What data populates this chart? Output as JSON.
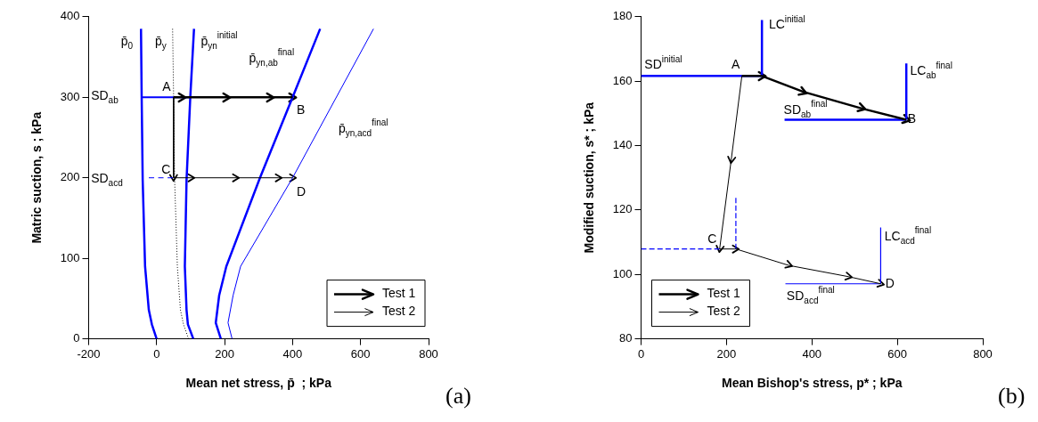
{
  "chart_data": [
    {
      "type": "line",
      "xlabel": "Mean net stress, p̄  ; kPa",
      "ylabel": "Matric suction, s ; kPa",
      "xlim": [
        -200,
        800
      ],
      "xticks": [
        -200,
        0,
        200,
        400,
        600,
        800
      ],
      "ylim": [
        0,
        400
      ],
      "yticks": [
        0,
        100,
        200,
        300,
        400
      ],
      "grid": false,
      "legend": "bottom right",
      "series": [
        {
          "color": "#0000ff",
          "x": [
            0,
            -14,
            -23,
            -34,
            -41,
            -44,
            -46
          ],
          "values": [
            0,
            18,
            36,
            90,
            197,
            300,
            385
          ]
        },
        {
          "color": "#000000",
          "line_style": "dotted",
          "x": [
            94,
            79,
            70,
            61,
            53,
            50,
            47
          ],
          "values": [
            0,
            18,
            36,
            90,
            197,
            300,
            385
          ]
        },
        {
          "color": "#0000ff",
          "x": [
            108,
            92,
            88,
            83,
            88,
            99,
            110
          ],
          "values": [
            0,
            18,
            36,
            90,
            197,
            300,
            385
          ]
        },
        {
          "color": "#0000ff",
          "x": [
            189,
            174,
            184,
            205,
            304,
            400,
            481
          ],
          "values": [
            0,
            20,
            54,
            90,
            200,
            300,
            385
          ]
        },
        {
          "color": "#0000ff",
          "x": [
            222,
            210,
            225,
            247,
            400,
            638
          ],
          "values": [
            0,
            20,
            54,
            90,
            200,
            385
          ]
        },
        {
          "color": "#0000ff",
          "x": [
            -44,
            101
          ],
          "values": [
            300,
            300
          ]
        },
        {
          "color": "#0000ff",
          "line_style": "dashed",
          "x": [
            -23,
            48
          ],
          "values": [
            200,
            200
          ]
        },
        {
          "name": "Test 1",
          "color": "#000000",
          "marker": "cross",
          "x": [
            50,
            74,
            207,
            335,
            400
          ],
          "values": [
            300,
            300,
            300,
            300,
            300
          ]
        },
        {
          "name": "Test 2",
          "color": "#000000",
          "marker": "cross",
          "x": [
            50,
            50,
            101,
            234,
            358,
            400
          ],
          "values": [
            300,
            200,
            200,
            200,
            200,
            200
          ]
        }
      ],
      "annotations": [
        "p̄$_{0}$",
        "p̄$_{y}$",
        "p̄$_{yn}$$^{initial}$",
        "p̄$_{yn,ab}$$^{final}$",
        "p̄$_{yn,acd}$$^{final}$",
        "A",
        "B",
        "C",
        "D",
        "SD$_{ab}$",
        "SD$_{acd}$",
        "(a)"
      ]
    },
    {
      "type": "line",
      "xlabel": "Mean Bishop's stress, p* ; kPa",
      "ylabel": "Modified suction, s* ; kPa",
      "xlim": [
        0,
        800
      ],
      "xticks": [
        0,
        200,
        400,
        600,
        800
      ],
      "ylim": [
        80,
        180
      ],
      "yticks": [
        80,
        100,
        120,
        140,
        160,
        180
      ],
      "grid": false,
      "legend": "bottom left",
      "series": [
        {
          "color": "#0000ff",
          "x": [
            0,
            283
          ],
          "values": [
            161.6,
            161.6
          ]
        },
        {
          "color": "#0000ff",
          "x": [
            283,
            283
          ],
          "values": [
            161.6,
            179
          ]
        },
        {
          "color": "#0000ff",
          "x": [
            621,
            621
          ],
          "values": [
            148,
            165.5
          ]
        },
        {
          "color": "#0000ff",
          "x": [
            336,
            621
          ],
          "values": [
            148,
            148
          ]
        },
        {
          "color": "#0000ff",
          "x": [
            561,
            561
          ],
          "values": [
            97.1,
            114.6
          ]
        },
        {
          "color": "#0000ff",
          "x": [
            338,
            561
          ],
          "values": [
            97.1,
            97.1
          ]
        },
        {
          "color": "#0000ff",
          "line_style": "dashed",
          "x": [
            0,
            184
          ],
          "values": [
            107.9,
            107.9
          ]
        },
        {
          "color": "#0000ff",
          "line_style": "dashed",
          "x": [
            222,
            222
          ],
          "values": [
            107.9,
            123.8
          ]
        },
        {
          "name": "Test 1",
          "color": "#000000",
          "marker": "cross",
          "x": [
            236,
            283,
            380,
            517,
            621
          ],
          "values": [
            161.6,
            161.6,
            156.7,
            151.5,
            148
          ]
        },
        {
          "name": "Test 2",
          "color": "#000000",
          "marker": "cross",
          "x": [
            236,
            211,
            184,
            222,
            346,
            486,
            561
          ],
          "values": [
            161.6,
            135.5,
            107.9,
            107.9,
            102.8,
            99.3,
            97.1
          ]
        }
      ],
      "annotations": [
        "SD$^{initial}$",
        "A",
        "LC$^{initial}$",
        "LC$_{ab}$$^{final}$",
        "SD$_{ab}$$^{final}$",
        "B",
        "C",
        "LC$_{acd}$$^{final}$",
        "D",
        "SD$_{acd}$$^{final}$",
        "(b)"
      ]
    }
  ]
}
